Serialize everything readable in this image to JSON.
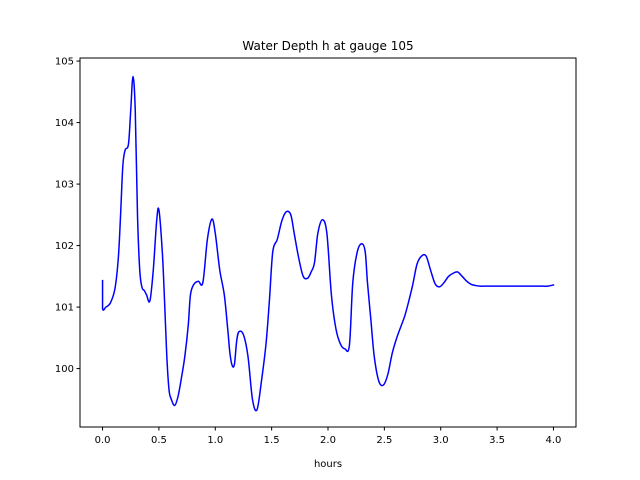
{
  "chart_data": {
    "type": "line",
    "title": "Water Depth h at gauge 105",
    "xlabel": "hours",
    "ylabel": "",
    "xlim": [
      -0.2,
      4.2
    ],
    "ylim": [
      99.05,
      105.05
    ],
    "xticks": [
      0.0,
      0.5,
      1.0,
      1.5,
      2.0,
      2.5,
      3.0,
      3.5,
      4.0
    ],
    "xtick_labels": [
      "0.0",
      "0.5",
      "1.0",
      "1.5",
      "2.0",
      "2.5",
      "3.0",
      "3.5",
      "4.0"
    ],
    "yticks": [
      100,
      101,
      102,
      103,
      104,
      105
    ],
    "ytick_labels": [
      "100",
      "101",
      "102",
      "103",
      "104",
      "105"
    ],
    "grid": false,
    "series": [
      {
        "color": "#0000ff",
        "x": [
          0.0,
          0.0,
          0.03,
          0.07,
          0.11,
          0.14,
          0.16,
          0.18,
          0.2,
          0.23,
          0.25,
          0.27,
          0.29,
          0.31,
          0.33,
          0.35,
          0.37,
          0.39,
          0.42,
          0.45,
          0.48,
          0.5,
          0.53,
          0.55,
          0.57,
          0.59,
          0.61,
          0.64,
          0.67,
          0.7,
          0.73,
          0.76,
          0.78,
          0.81,
          0.85,
          0.89,
          0.93,
          0.97,
          1.0,
          1.04,
          1.08,
          1.11,
          1.13,
          1.15,
          1.17,
          1.19,
          1.21,
          1.25,
          1.29,
          1.33,
          1.37,
          1.41,
          1.45,
          1.48,
          1.51,
          1.55,
          1.59,
          1.63,
          1.67,
          1.7,
          1.74,
          1.78,
          1.82,
          1.85,
          1.88,
          1.91,
          1.95,
          1.99,
          2.03,
          2.07,
          2.11,
          2.15,
          2.19,
          2.22,
          2.26,
          2.3,
          2.33,
          2.35,
          2.38,
          2.41,
          2.45,
          2.49,
          2.53,
          2.57,
          2.61,
          2.65,
          2.68,
          2.71,
          2.75,
          2.79,
          2.83,
          2.87,
          2.91,
          2.95,
          2.99,
          3.03,
          3.07,
          3.11,
          3.15,
          3.19,
          3.23,
          3.27,
          3.31,
          3.35,
          3.39,
          3.43,
          3.47,
          3.51,
          3.55,
          3.59,
          3.63,
          3.67,
          3.71,
          3.75,
          3.79,
          3.83,
          3.87,
          3.91,
          3.95,
          4.0
        ],
        "y": [
          101.43,
          100.98,
          101.0,
          101.07,
          101.3,
          101.8,
          102.5,
          103.3,
          103.55,
          103.65,
          104.2,
          104.75,
          104.2,
          102.5,
          101.6,
          101.32,
          101.27,
          101.2,
          101.1,
          101.6,
          102.4,
          102.58,
          101.9,
          101.1,
          100.2,
          99.65,
          99.5,
          99.4,
          99.55,
          99.85,
          100.2,
          100.7,
          101.2,
          101.37,
          101.42,
          101.4,
          102.1,
          102.43,
          102.2,
          101.6,
          101.2,
          100.65,
          100.25,
          100.05,
          100.07,
          100.45,
          100.6,
          100.55,
          100.2,
          99.5,
          99.33,
          99.8,
          100.4,
          101.1,
          101.9,
          102.1,
          102.4,
          102.55,
          102.5,
          102.2,
          101.8,
          101.5,
          101.47,
          101.57,
          101.72,
          102.2,
          102.42,
          102.2,
          101.2,
          100.65,
          100.4,
          100.32,
          100.38,
          101.4,
          101.9,
          102.03,
          101.9,
          101.4,
          100.8,
          100.2,
          99.8,
          99.73,
          99.9,
          100.25,
          100.5,
          100.7,
          100.85,
          101.05,
          101.35,
          101.7,
          101.83,
          101.83,
          101.6,
          101.38,
          101.33,
          101.4,
          101.5,
          101.55,
          101.57,
          101.5,
          101.42,
          101.37,
          101.35,
          101.34,
          101.34,
          101.34,
          101.34,
          101.34,
          101.34,
          101.34,
          101.34,
          101.34,
          101.34,
          101.34,
          101.34,
          101.34,
          101.34,
          101.34,
          101.34,
          101.36
        ]
      }
    ]
  }
}
